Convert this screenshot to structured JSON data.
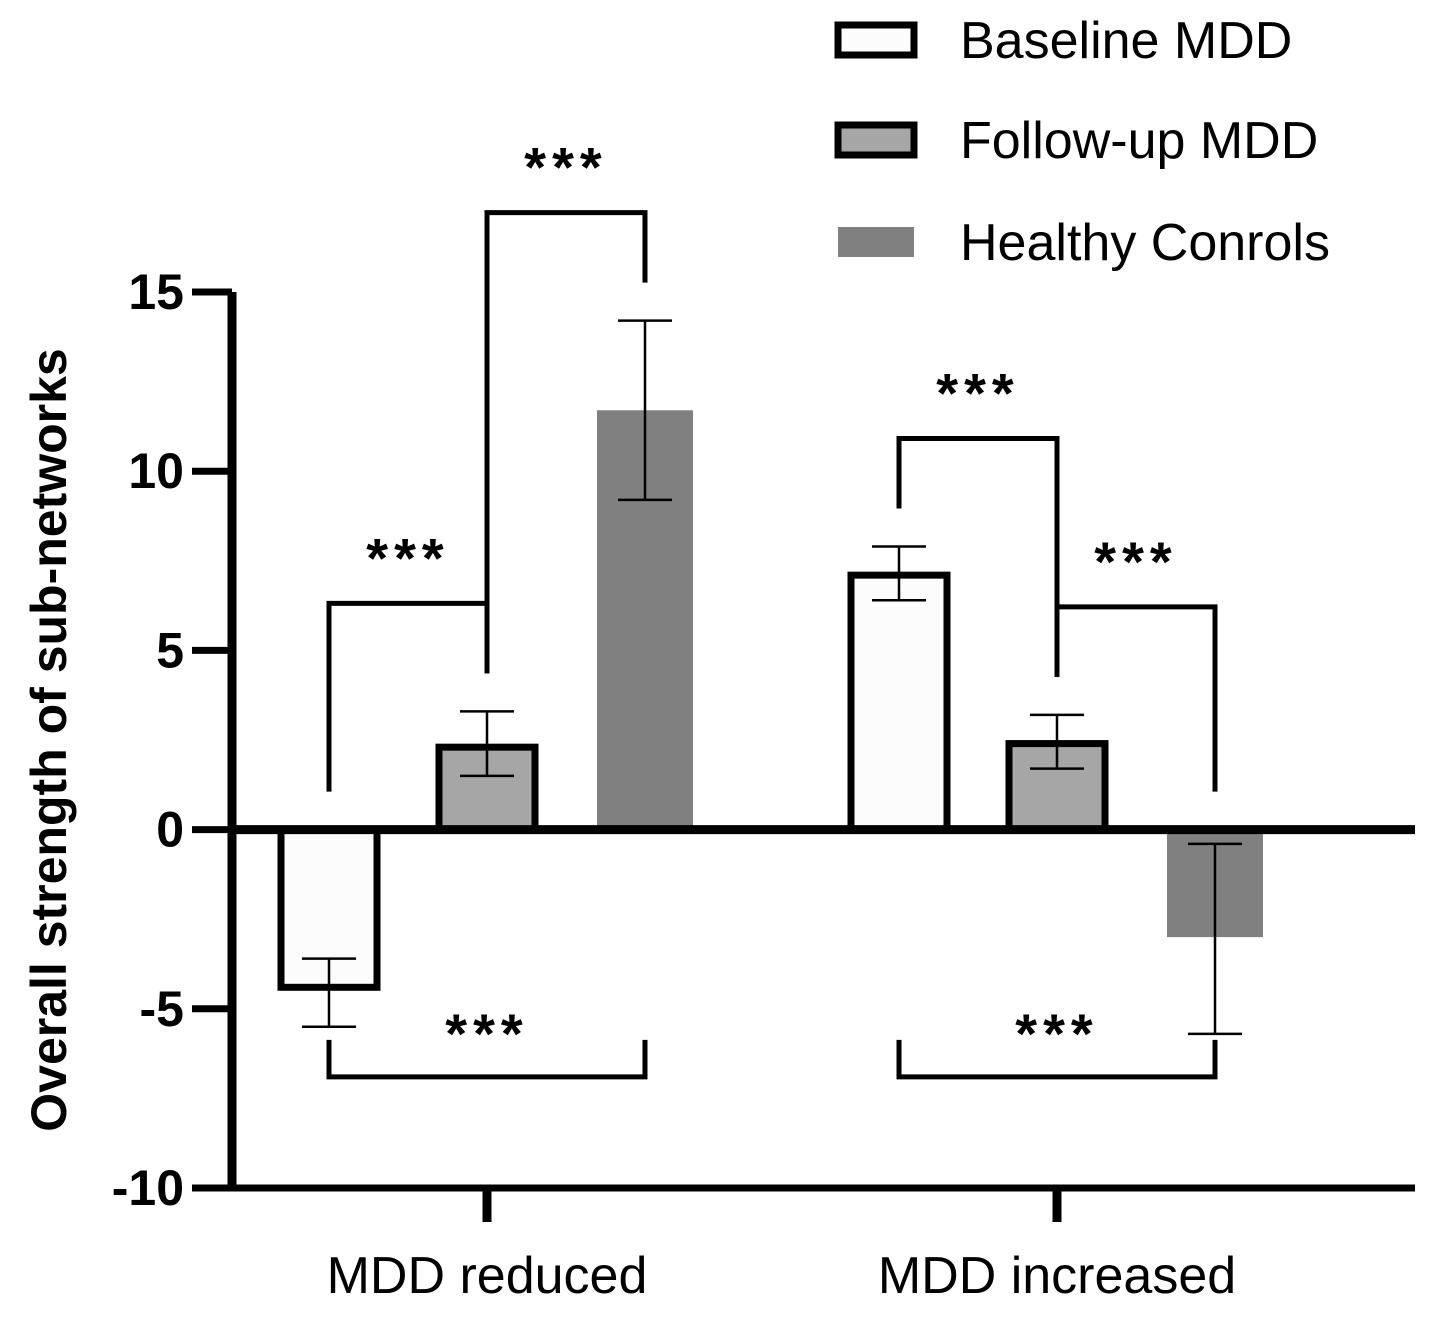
{
  "chart_data": {
    "type": "bar",
    "title": "",
    "xlabel": "",
    "ylabel": "Overall strength of sub-networks",
    "ylim": [
      -10,
      15
    ],
    "yticks": [
      15,
      10,
      5,
      0,
      -5,
      -10
    ],
    "categories": [
      "MDD reduced",
      "MDD increased"
    ],
    "series": [
      {
        "name": "Baseline MDD",
        "fill": "#fcfcfc",
        "stroke": "#000000",
        "values": [
          -4.4,
          7.1
        ],
        "error_low": [
          -5.5,
          6.4
        ],
        "error_high": [
          -3.6,
          7.9
        ]
      },
      {
        "name": "Follow-up MDD",
        "fill": "#a6a6a6",
        "stroke": "#000000",
        "values": [
          2.3,
          2.4
        ],
        "error_low": [
          1.5,
          1.7
        ],
        "error_high": [
          3.3,
          3.2
        ]
      },
      {
        "name": "Healthy Conrols",
        "fill": "#808080",
        "stroke": "none",
        "values": [
          11.7,
          -3.0
        ],
        "error_low": [
          9.2,
          -5.7
        ],
        "error_high": [
          14.2,
          -0.4
        ]
      }
    ],
    "significance": [
      {
        "category": 0,
        "from_series": 0,
        "to_series": 1,
        "label": "***",
        "side": "above"
      },
      {
        "category": 0,
        "from_series": 1,
        "to_series": 2,
        "label": "***",
        "side": "above"
      },
      {
        "category": 0,
        "from_series": 0,
        "to_series": 2,
        "label": "***",
        "side": "below"
      },
      {
        "category": 1,
        "from_series": 0,
        "to_series": 1,
        "label": "***",
        "side": "above"
      },
      {
        "category": 1,
        "from_series": 1,
        "to_series": 2,
        "label": "***",
        "side": "above"
      },
      {
        "category": 1,
        "from_series": 0,
        "to_series": 2,
        "label": "***",
        "side": "below"
      }
    ],
    "legend_position": "top-right"
  }
}
